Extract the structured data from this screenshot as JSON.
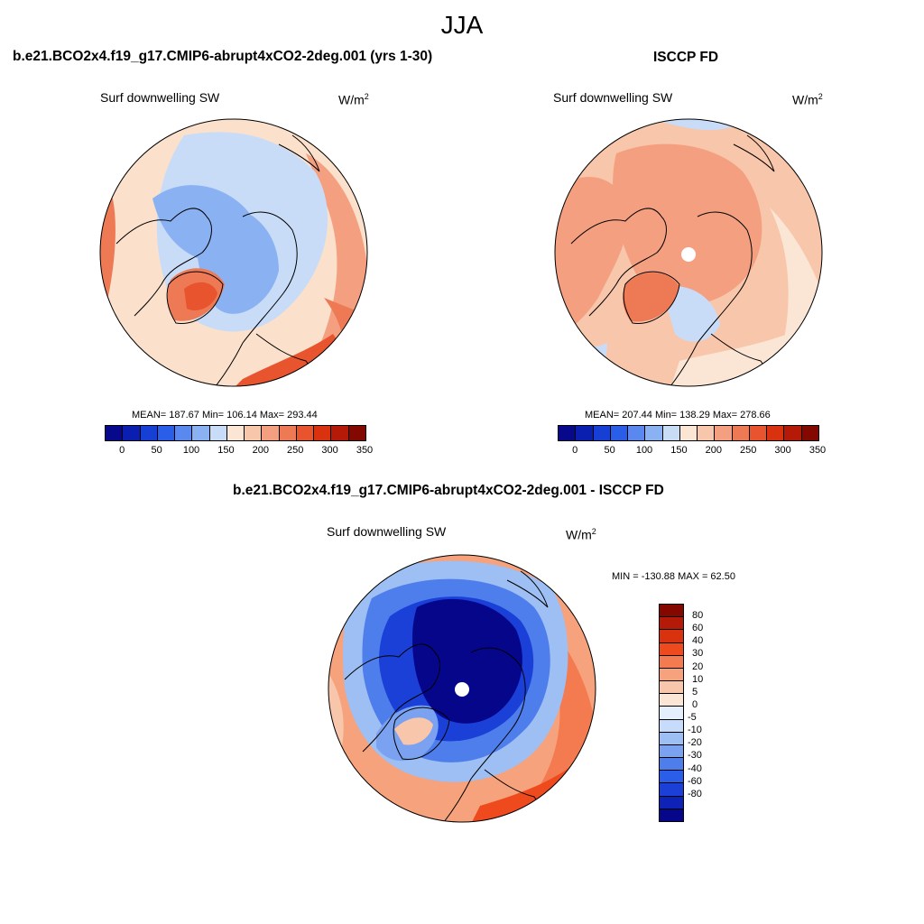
{
  "title": "JJA",
  "panels": [
    {
      "id": "model",
      "title": "b.e21.BCO2x4.f19_g17.CMIP6-abrupt4xCO2-2deg.001 (yrs 1-30)",
      "variable": "Surf downwelling SW",
      "units_base": "W/m",
      "units_sup": "2",
      "stats": "MEAN= 187.67  Min= 106.14  Max= 293.44",
      "mean": 187.67,
      "min": 106.14,
      "max": 293.44
    },
    {
      "id": "obs",
      "title": "ISCCP FD",
      "variable": "Surf downwelling SW",
      "units_base": "W/m",
      "units_sup": "2",
      "stats": "MEAN= 207.44  Min= 138.29  Max= 278.66",
      "mean": 207.44,
      "min": 138.29,
      "max": 278.66
    },
    {
      "id": "diff",
      "title": "b.e21.BCO2x4.f19_g17.CMIP6-abrupt4xCO2-2deg.001 - ISCCP FD",
      "variable": "Surf downwelling SW",
      "units_base": "W/m",
      "units_sup": "2",
      "stats": "MIN = -130.88 MAX =  62.50",
      "min": -130.88,
      "max": 62.5
    }
  ],
  "abs_colorbar": {
    "colors": [
      "#08088c",
      "#0a1fb0",
      "#1640d4",
      "#2a5ee8",
      "#5a88ee",
      "#8ab2f2",
      "#c8dcf8",
      "#fbe6d6",
      "#f8c6aa",
      "#f4a080",
      "#ee7a55",
      "#e8542e",
      "#d8320f",
      "#b51a08",
      "#820800"
    ],
    "tick_labels": [
      "0",
      "50",
      "100",
      "150",
      "200",
      "250",
      "300",
      "350"
    ],
    "tick_values": [
      0,
      50,
      100,
      150,
      200,
      250,
      300,
      350
    ]
  },
  "diff_colorbar": {
    "colors": [
      "#840800",
      "#b51a08",
      "#d8320f",
      "#ee4a1e",
      "#f47a50",
      "#f6a27c",
      "#f8c6aa",
      "#fbe6d6",
      "#e4eefc",
      "#c6dcfa",
      "#9ebff4",
      "#7aa2f0",
      "#4e7eec",
      "#2a5ee8",
      "#1a40d8",
      "#0e22b8",
      "#06068a"
    ],
    "tick_labels": [
      "80",
      "60",
      "40",
      "30",
      "20",
      "10",
      "5",
      "0",
      "-5",
      "-10",
      "-20",
      "-30",
      "-40",
      "-60",
      "-80"
    ]
  },
  "map_style": {
    "background_abs": "#fbe0cc",
    "background_diff": "#f4a080",
    "coast_color": "#000000"
  }
}
